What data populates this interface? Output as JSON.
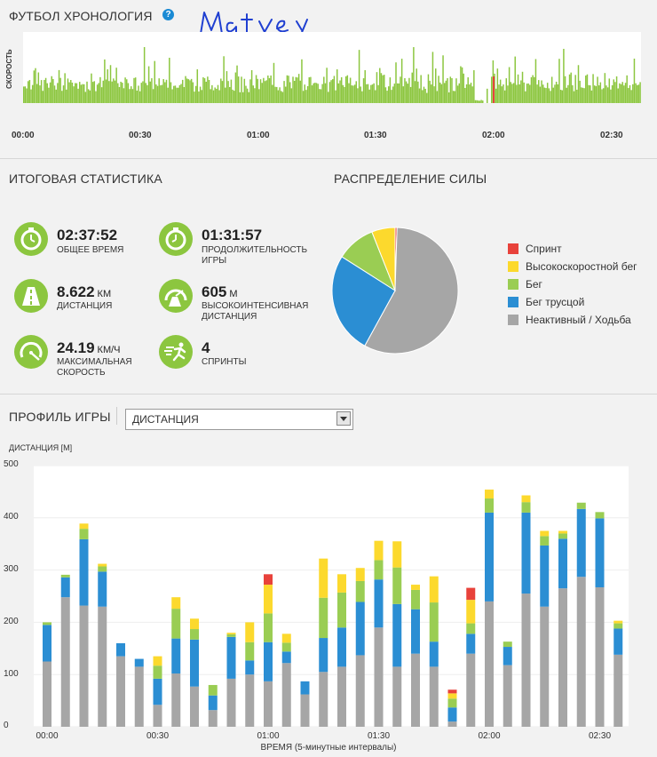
{
  "timeline": {
    "title": "ФУТБОЛ ХРОНОЛОГИЯ",
    "help_symbol": "?",
    "handwriting": "Matvey",
    "ylabel": "СКОРОСТЬ",
    "ticks": [
      "00:00",
      "00:30",
      "01:00",
      "01:30",
      "02:00",
      "02:30"
    ],
    "colors": {
      "active": "#8cc63f",
      "sprint": "#e8423b"
    }
  },
  "summary": {
    "title": "ИТОГОВАЯ СТАТИСТИКА",
    "items": [
      {
        "value": "02:37:52",
        "unit": "",
        "label": "ОБЩЕЕ ВРЕМЯ",
        "icon": "stopwatch-icon"
      },
      {
        "value": "01:31:57",
        "unit": "",
        "label": "ПРОДОЛЖИТЕЛЬНОСТЬ ИГРЫ",
        "icon": "stopwatch-icon"
      },
      {
        "value": "8.622",
        "unit": "КМ",
        "label": "ДИСТАНЦИЯ",
        "icon": "road-icon"
      },
      {
        "value": "605",
        "unit": "М",
        "label": "ВЫСОКОИНТЕНСИВНАЯ ДИСТАНЦИЯ",
        "icon": "intensity-road-icon"
      },
      {
        "value": "24.19",
        "unit": "КМ/Ч",
        "label": "МАКСИМАЛЬНАЯ СКОРОСТЬ",
        "icon": "speedometer-icon"
      },
      {
        "value": "4",
        "unit": "",
        "label": "СПРИНТЫ",
        "icon": "sprinter-icon"
      }
    ]
  },
  "distribution": {
    "title": "РАСПРЕДЕЛЕНИЕ СИЛЫ",
    "legend": [
      {
        "name": "Спринт",
        "color": "#e8423b"
      },
      {
        "name": "Высокоскоростной бег",
        "color": "#fcd92d"
      },
      {
        "name": "Бег",
        "color": "#9acd53"
      },
      {
        "name": "Бег трусцой",
        "color": "#2b8ed3"
      },
      {
        "name": "Неактивный / Ходьба",
        "color": "#a6a6a6"
      }
    ]
  },
  "profile": {
    "title": "ПРОФИЛЬ ИГРЫ",
    "select_value": "ДИСТАНЦИЯ",
    "ylabel": "ДИСТАНЦИЯ [М]",
    "xlabel": "ВРЕМЯ (5-минутные интервалы)"
  },
  "chart_data": [
    {
      "type": "pie",
      "title": "РАСПРЕДЕЛЕНИЕ СИЛЫ",
      "slices": [
        {
          "name": "Спринт",
          "value": 0.5,
          "color": "#e8423b"
        },
        {
          "name": "Неактивный / Ходьба",
          "value": 57.5,
          "color": "#a6a6a6"
        },
        {
          "name": "Бег трусцой",
          "value": 26,
          "color": "#2b8ed3"
        },
        {
          "name": "Бег",
          "value": 10,
          "color": "#9acd53"
        },
        {
          "name": "Высокоскоростной бег",
          "value": 6,
          "color": "#fcd92d"
        }
      ]
    },
    {
      "type": "bar",
      "stacked": true,
      "title": "ПРОФИЛЬ ИГРЫ",
      "ylabel": "ДИСТАНЦИЯ [М]",
      "xlabel": "ВРЕМЯ (5-минутные интервалы)",
      "ylim": [
        0,
        500
      ],
      "yticks": [
        0,
        100,
        200,
        300,
        400,
        500
      ],
      "xticks": [
        {
          "label": "00:00",
          "index": 0
        },
        {
          "label": "00:30",
          "index": 6
        },
        {
          "label": "01:00",
          "index": 12
        },
        {
          "label": "01:30",
          "index": 18
        },
        {
          "label": "02:00",
          "index": 24
        },
        {
          "label": "02:30",
          "index": 30
        }
      ],
      "intervals": 32,
      "series": [
        {
          "name": "Неактивный / Ходьба",
          "color": "#a6a6a6",
          "values": [
            125,
            248,
            232,
            230,
            135,
            115,
            42,
            102,
            77,
            32,
            92,
            100,
            87,
            122,
            62,
            105,
            115,
            137,
            190,
            115,
            140,
            115,
            10,
            140,
            240,
            118,
            255,
            230,
            265,
            287,
            267,
            138
          ]
        },
        {
          "name": "Бег трусцой",
          "color": "#2b8ed3",
          "values": [
            70,
            38,
            127,
            67,
            25,
            15,
            50,
            67,
            90,
            28,
            80,
            27,
            75,
            22,
            25,
            65,
            75,
            102,
            92,
            120,
            85,
            48,
            27,
            38,
            170,
            35,
            155,
            117,
            95,
            130,
            132,
            50
          ]
        },
        {
          "name": "Бег",
          "color": "#9acd53",
          "values": [
            5,
            5,
            20,
            10,
            0,
            0,
            25,
            57,
            20,
            20,
            5,
            35,
            55,
            17,
            0,
            77,
            67,
            40,
            37,
            70,
            37,
            75,
            17,
            20,
            27,
            10,
            20,
            18,
            10,
            12,
            12,
            10
          ]
        },
        {
          "name": "Высокоскоростной бег",
          "color": "#fcd92d",
          "values": [
            0,
            0,
            10,
            5,
            0,
            0,
            18,
            22,
            20,
            0,
            3,
            38,
            55,
            17,
            0,
            75,
            35,
            25,
            37,
            50,
            10,
            50,
            10,
            45,
            17,
            0,
            13,
            10,
            5,
            0,
            0,
            5
          ]
        },
        {
          "name": "Спринт",
          "color": "#e8423b",
          "values": [
            0,
            0,
            0,
            0,
            0,
            0,
            0,
            0,
            0,
            0,
            0,
            0,
            20,
            0,
            0,
            0,
            0,
            0,
            0,
            0,
            0,
            0,
            7,
            23,
            0,
            0,
            0,
            0,
            0,
            0,
            0,
            0
          ]
        }
      ]
    }
  ]
}
